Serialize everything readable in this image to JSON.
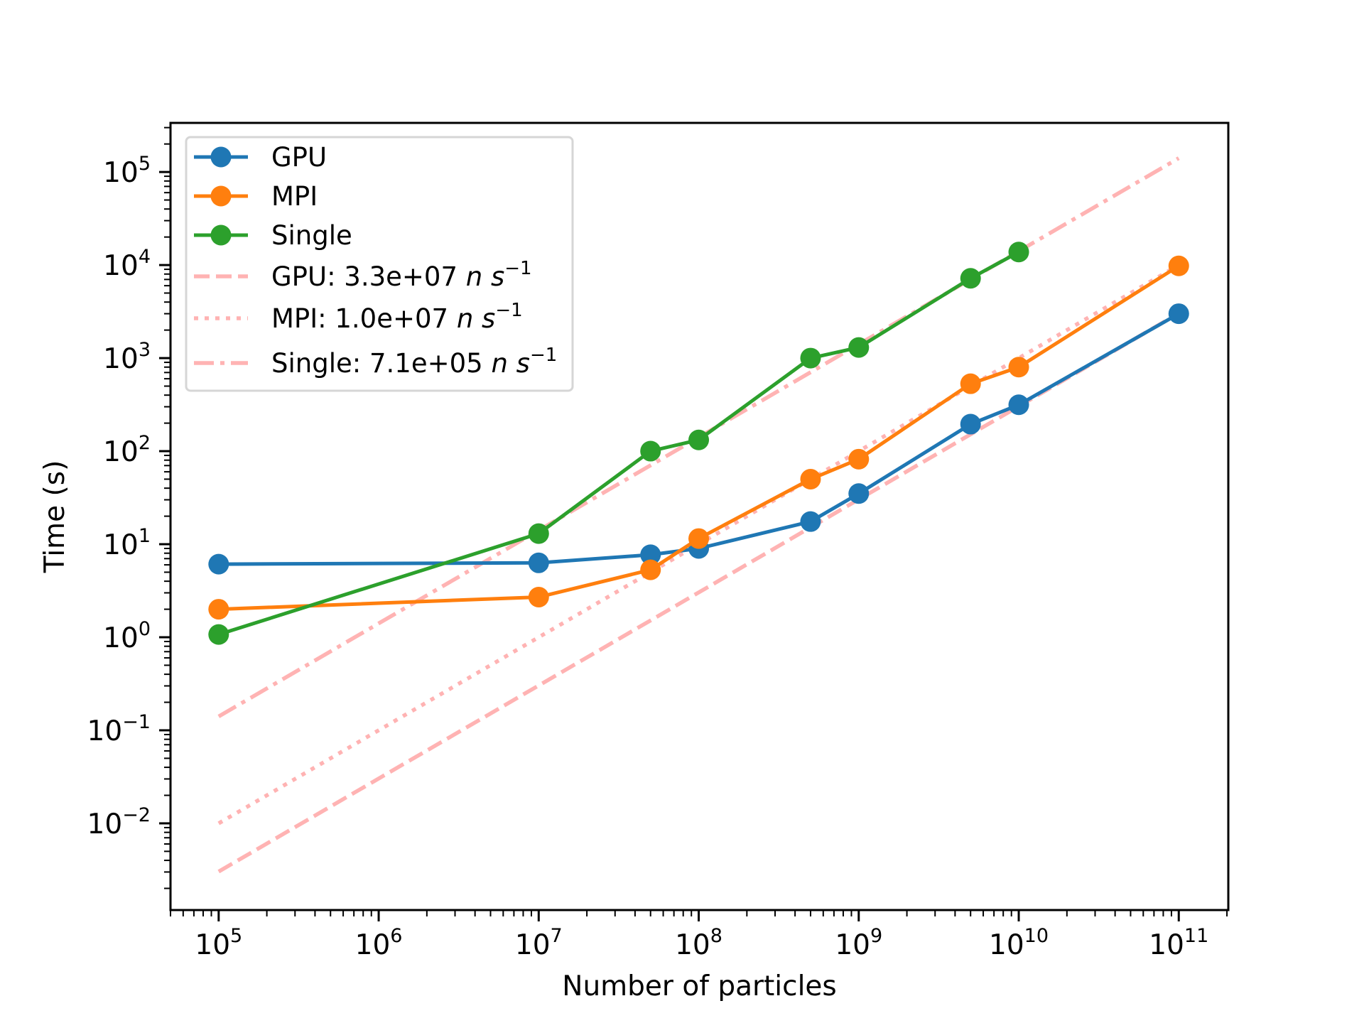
{
  "chart_data": {
    "type": "line",
    "title": "",
    "xlabel": "Number of particles",
    "ylabel": "Time (s)",
    "xscale": "log",
    "yscale": "log",
    "xlim": [
      50000.0,
      204000000000.0
    ],
    "ylim": [
      0.00117,
      337000.0
    ],
    "grid": false,
    "legend_position": "upper-left",
    "x_ticks": [
      {
        "value": 100000.0,
        "base": "10",
        "exp": "5"
      },
      {
        "value": 1000000.0,
        "base": "10",
        "exp": "6"
      },
      {
        "value": 10000000.0,
        "base": "10",
        "exp": "7"
      },
      {
        "value": 100000000.0,
        "base": "10",
        "exp": "8"
      },
      {
        "value": 1000000000.0,
        "base": "10",
        "exp": "9"
      },
      {
        "value": 10000000000.0,
        "base": "10",
        "exp": "10"
      },
      {
        "value": 100000000000.0,
        "base": "10",
        "exp": "11"
      }
    ],
    "y_ticks": [
      {
        "value": 0.01,
        "base": "10",
        "exp": "−2"
      },
      {
        "value": 0.1,
        "base": "10",
        "exp": "−1"
      },
      {
        "value": 1.0,
        "base": "10",
        "exp": "0"
      },
      {
        "value": 10.0,
        "base": "10",
        "exp": "1"
      },
      {
        "value": 100.0,
        "base": "10",
        "exp": "2"
      },
      {
        "value": 1000.0,
        "base": "10",
        "exp": "3"
      },
      {
        "value": 10000.0,
        "base": "10",
        "exp": "4"
      },
      {
        "value": 100000.0,
        "base": "10",
        "exp": "5"
      }
    ],
    "series": [
      {
        "name": "GPU",
        "color": "#1f77b4",
        "style": "solid-marker",
        "x": [
          100000.0,
          10000000.0,
          50000000.0,
          100000000.0,
          500000000.0,
          1000000000.0,
          5000000000.0,
          10000000000.0,
          100000000000.0
        ],
        "values": [
          6.1,
          6.3,
          7.7,
          9.0,
          17.5,
          35,
          195,
          315,
          3000
        ]
      },
      {
        "name": "MPI",
        "color": "#ff7f0e",
        "style": "solid-marker",
        "x": [
          100000.0,
          10000000.0,
          50000000.0,
          100000000.0,
          500000000.0,
          1000000000.0,
          5000000000.0,
          10000000000.0,
          100000000000.0
        ],
        "values": [
          2.0,
          2.7,
          5.3,
          11.5,
          50,
          82,
          530,
          800,
          9800
        ]
      },
      {
        "name": "Single",
        "color": "#2ca02c",
        "style": "solid-marker",
        "x": [
          100000.0,
          10000000.0,
          50000000.0,
          100000000.0,
          500000000.0,
          1000000000.0,
          5000000000.0,
          10000000000.0
        ],
        "values": [
          1.07,
          13,
          100,
          132,
          1000,
          1300,
          7200,
          13800
        ]
      }
    ],
    "fits": [
      {
        "name": "GPU",
        "rate": 33000000.0,
        "label": "GPU: 3.3e+07",
        "unit_n": "n",
        "unit_s": "s",
        "unit_exp": "−1",
        "dash": "dashed",
        "color": "#ffb3b3",
        "x_range": [
          100000.0,
          100000000000.0
        ]
      },
      {
        "name": "MPI",
        "rate": 10000000.0,
        "label": "MPI: 1.0e+07",
        "unit_n": "n",
        "unit_s": "s",
        "unit_exp": "−1",
        "dash": "dotted",
        "color": "#ffb3b3",
        "x_range": [
          100000.0,
          100000000000.0
        ]
      },
      {
        "name": "Single",
        "rate": 710000.0,
        "label": "Single: 7.1e+05",
        "unit_n": "n",
        "unit_s": "s",
        "unit_exp": "−1",
        "dash": "dashdot",
        "color": "#ffb3b3",
        "x_range": [
          100000.0,
          100000000000.0
        ]
      }
    ]
  }
}
